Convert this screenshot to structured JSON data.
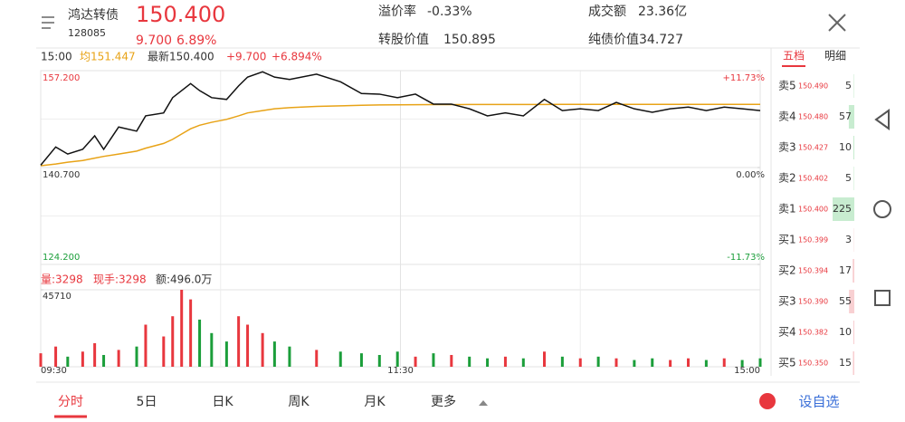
{
  "header": {
    "name": "鸿达转债",
    "code": "128085",
    "price": "150.400",
    "change": "9.700",
    "change_pct": "6.89%",
    "stats": [
      {
        "label": "溢价率",
        "value": "-0.33%"
      },
      {
        "label": "成交额",
        "value": "23.36亿"
      },
      {
        "label": "转股价值",
        "value": "150.895"
      },
      {
        "label": "纯债价值",
        "value": "34.727"
      }
    ]
  },
  "info": {
    "time": "15:00",
    "average": "均151.447",
    "latest": "最新150.400",
    "change": "+9.700",
    "change_pct": "+6.894%"
  },
  "chart_data": [
    {
      "type": "line",
      "xlim": [
        0,
        240
      ],
      "xticks": [
        {
          "value": 0,
          "label": "09:30"
        },
        {
          "value": 120,
          "label": "11:30"
        },
        {
          "value": 240,
          "label": "15:00"
        }
      ],
      "ylim": [
        124.2,
        157.2
      ],
      "yticks": [
        {
          "value": 124.2,
          "label": "124.200"
        },
        {
          "value": 140.7,
          "label": "140.700"
        },
        {
          "value": 157.2,
          "label": "157.200"
        }
      ],
      "y2lim": [
        -11.73,
        11.73
      ],
      "y2ticks": [
        {
          "value": -11.73,
          "label": "-11.73%"
        },
        {
          "value": 0,
          "label": "0.00%"
        },
        {
          "value": 11.73,
          "label": "+11.73%"
        }
      ],
      "x": [
        0,
        5,
        9,
        14,
        18,
        21,
        26,
        32,
        35,
        41,
        44,
        47,
        50,
        53,
        57,
        62,
        66,
        69,
        74,
        78,
        83,
        92,
        100,
        107,
        113,
        119,
        125,
        131,
        137,
        143,
        149,
        155,
        161,
        168,
        174,
        180,
        186,
        192,
        198,
        204,
        210,
        216,
        222,
        228,
        234,
        240
      ],
      "series": [
        {
          "name": "最新",
          "color": "#111111",
          "values": [
            141.1,
            144.2,
            143.0,
            143.8,
            146.1,
            143.8,
            147.6,
            146.9,
            149.5,
            150.0,
            152.6,
            153.8,
            155.0,
            153.8,
            152.6,
            152.3,
            154.6,
            156.1,
            157.0,
            156.1,
            155.7,
            156.6,
            155.3,
            153.3,
            153.2,
            152.6,
            153.2,
            151.5,
            151.5,
            150.7,
            149.5,
            150.0,
            149.5,
            152.3,
            150.4,
            150.7,
            150.4,
            151.8,
            150.7,
            150.1,
            150.7,
            151.0,
            150.4,
            151.0,
            150.7,
            150.4
          ]
        },
        {
          "name": "均",
          "color": "#e8a317",
          "values": [
            141.0,
            141.3,
            141.6,
            141.9,
            142.3,
            142.6,
            143.0,
            143.5,
            144.0,
            144.8,
            145.5,
            146.4,
            147.3,
            147.9,
            148.4,
            148.9,
            149.5,
            150.0,
            150.4,
            150.7,
            150.9,
            151.1,
            151.2,
            151.3,
            151.35,
            151.38,
            151.4,
            151.41,
            151.42,
            151.43,
            151.43,
            151.44,
            151.44,
            151.44,
            151.45,
            151.45,
            151.45,
            151.45,
            151.45,
            151.45,
            151.45,
            151.45,
            151.45,
            151.45,
            151.45,
            151.447
          ]
        }
      ]
    },
    {
      "type": "bar",
      "volume": "量:3298",
      "hand": "现手:3298",
      "amount": "额:496.0万",
      "ylim": [
        0,
        45710
      ],
      "yticks": [
        45710
      ],
      "values": [
        8000,
        12000,
        6000,
        9000,
        14000,
        7000,
        10000,
        12000,
        25000,
        18000,
        30000,
        45710,
        40000,
        28000,
        20000,
        15000,
        30000,
        25000,
        20000,
        15000,
        12000,
        10000,
        9000,
        8000,
        7000,
        9000,
        6000,
        8000,
        7000,
        6000,
        5000,
        6000,
        5000,
        9000,
        6000,
        5000,
        6000,
        5000,
        4000,
        5000,
        4000,
        5000,
        4000,
        5000,
        4000,
        5000
      ]
    }
  ],
  "order_book": {
    "tabs": [
      "五档",
      "明细"
    ],
    "asks": [
      {
        "label": "卖5",
        "price": "150.490",
        "qty": 5
      },
      {
        "label": "卖4",
        "price": "150.480",
        "qty": 57
      },
      {
        "label": "卖3",
        "price": "150.427",
        "qty": 10
      },
      {
        "label": "卖2",
        "price": "150.402",
        "qty": 5
      },
      {
        "label": "卖1",
        "price": "150.400",
        "qty": 225
      }
    ],
    "bids": [
      {
        "label": "买1",
        "price": "150.399",
        "qty": 3
      },
      {
        "label": "买2",
        "price": "150.394",
        "qty": 17
      },
      {
        "label": "买3",
        "price": "150.390",
        "qty": 55
      },
      {
        "label": "买4",
        "price": "150.382",
        "qty": 10
      },
      {
        "label": "买5",
        "price": "150.350",
        "qty": 15
      }
    ]
  },
  "tabs": [
    "分时",
    "5日",
    "日K",
    "周K",
    "月K",
    "更多"
  ],
  "add_watch": "设自选"
}
